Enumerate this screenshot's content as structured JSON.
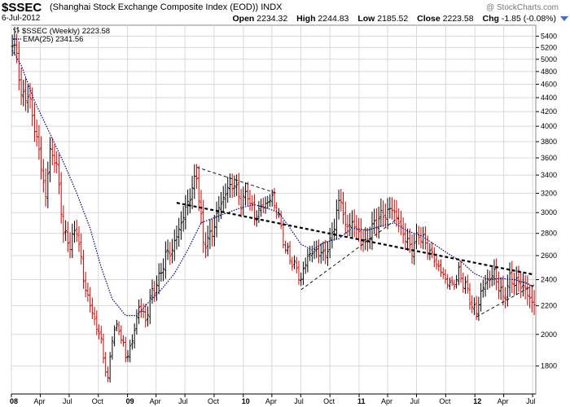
{
  "header": {
    "symbol": "$SSEC",
    "description": "(Shanghai Stock Exchange Composite Index (EOD)) INDX",
    "date": "6-Jul-2012",
    "watermark": "@ StockCharts.com",
    "open_label": "Open",
    "open": "2234.32",
    "high_label": "High",
    "high": "2244.83",
    "low_label": "Low",
    "low": "2185.52",
    "close_label": "Close",
    "close": "2223.58",
    "chg_label": "Chg",
    "chg": "-1.85 (-0.08%)"
  },
  "legend": {
    "main": "$SSEC (Weekly) 2223.58",
    "ema": "EMA(25) 2341.56"
  },
  "chart_data": {
    "type": "ohlc",
    "title": "$SSEC (Shanghai Stock Exchange Composite Index (EOD)) INDX",
    "y_scale": "log",
    "ylim": [
      1640,
      5600
    ],
    "y_ticks": [
      1800,
      2000,
      2200,
      2400,
      2600,
      2800,
      3000,
      3200,
      3400,
      3600,
      3800,
      4000,
      4200,
      4400,
      4600,
      4800,
      5000,
      5200,
      5400
    ],
    "y_axis_side": "right",
    "grid": true,
    "x_ticks": [
      {
        "label": "08",
        "year": true
      },
      {
        "label": "Apr"
      },
      {
        "label": "Jul"
      },
      {
        "label": "Oct"
      },
      {
        "label": "09",
        "year": true
      },
      {
        "label": "Apr"
      },
      {
        "label": "Jul"
      },
      {
        "label": "Oct"
      },
      {
        "label": "10",
        "year": true
      },
      {
        "label": "Apr"
      },
      {
        "label": "Jul"
      },
      {
        "label": "Oct"
      },
      {
        "label": "11",
        "year": true
      },
      {
        "label": "Apr"
      },
      {
        "label": "Jul"
      },
      {
        "label": "Oct"
      },
      {
        "label": "12",
        "year": true
      },
      {
        "label": "Apr"
      },
      {
        "label": "Jul"
      }
    ],
    "price_points": [
      [
        "2008-01-04",
        5250
      ],
      [
        "2008-01-18",
        5100
      ],
      [
        "2008-02-01",
        4400
      ],
      [
        "2008-02-22",
        4450
      ],
      [
        "2008-03-14",
        4000
      ],
      [
        "2008-04-04",
        3500
      ],
      [
        "2008-04-18",
        3150
      ],
      [
        "2008-05-02",
        3700
      ],
      [
        "2008-05-23",
        3500
      ],
      [
        "2008-06-13",
        2800
      ],
      [
        "2008-07-04",
        2700
      ],
      [
        "2008-07-25",
        2850
      ],
      [
        "2008-08-15",
        2400
      ],
      [
        "2008-09-05",
        2200
      ],
      [
        "2008-09-19",
        2100
      ],
      [
        "2008-10-10",
        1950
      ],
      [
        "2008-10-31",
        1700
      ],
      [
        "2008-11-14",
        2000
      ],
      [
        "2008-12-05",
        2050
      ],
      [
        "2008-12-26",
        1850
      ],
      [
        "2009-01-16",
        1950
      ],
      [
        "2009-02-06",
        2200
      ],
      [
        "2009-02-27",
        2100
      ],
      [
        "2009-03-20",
        2300
      ],
      [
        "2009-04-10",
        2400
      ],
      [
        "2009-05-01",
        2600
      ],
      [
        "2009-05-22",
        2650
      ],
      [
        "2009-06-19",
        2900
      ],
      [
        "2009-07-10",
        3100
      ],
      [
        "2009-08-07",
        3400
      ],
      [
        "2009-08-28",
        2700
      ],
      [
        "2009-09-25",
        2800
      ],
      [
        "2009-10-16",
        3050
      ],
      [
        "2009-11-13",
        3250
      ],
      [
        "2009-12-04",
        3300
      ],
      [
        "2009-12-25",
        3100
      ],
      [
        "2010-01-15",
        3200
      ],
      [
        "2010-02-05",
        2950
      ],
      [
        "2010-02-26",
        3050
      ],
      [
        "2010-04-02",
        3150
      ],
      [
        "2010-04-23",
        2950
      ],
      [
        "2010-05-14",
        2650
      ],
      [
        "2010-06-04",
        2550
      ],
      [
        "2010-07-02",
        2400
      ],
      [
        "2010-07-23",
        2600
      ],
      [
        "2010-08-20",
        2650
      ],
      [
        "2010-09-10",
        2600
      ],
      [
        "2010-10-01",
        2700
      ],
      [
        "2010-10-22",
        3000
      ],
      [
        "2010-11-05",
        3150
      ],
      [
        "2010-11-19",
        2850
      ],
      [
        "2010-12-10",
        2900
      ],
      [
        "2010-12-31",
        2800
      ],
      [
        "2011-01-21",
        2700
      ],
      [
        "2011-02-11",
        2850
      ],
      [
        "2011-03-04",
        2950
      ],
      [
        "2011-04-01",
        3000
      ],
      [
        "2011-04-15",
        3050
      ],
      [
        "2011-05-06",
        2900
      ],
      [
        "2011-05-27",
        2750
      ],
      [
        "2011-06-17",
        2650
      ],
      [
        "2011-07-08",
        2800
      ],
      [
        "2011-07-29",
        2700
      ],
      [
        "2011-08-19",
        2600
      ],
      [
        "2011-09-09",
        2500
      ],
      [
        "2011-09-30",
        2400
      ],
      [
        "2011-10-21",
        2350
      ],
      [
        "2011-11-11",
        2450
      ],
      [
        "2011-12-02",
        2350
      ],
      [
        "2011-12-23",
        2200
      ],
      [
        "2012-01-06",
        2150
      ],
      [
        "2012-01-20",
        2300
      ],
      [
        "2012-02-10",
        2400
      ],
      [
        "2012-03-02",
        2450
      ],
      [
        "2012-03-16",
        2350
      ],
      [
        "2012-03-30",
        2250
      ],
      [
        "2012-04-20",
        2400
      ],
      [
        "2012-05-11",
        2380
      ],
      [
        "2012-06-01",
        2350
      ],
      [
        "2012-06-22",
        2250
      ],
      [
        "2012-07-06",
        2220
      ]
    ],
    "ema_points": [
      [
        "2008-01-04",
        5150
      ],
      [
        "2008-02-01",
        4900
      ],
      [
        "2008-03-14",
        4350
      ],
      [
        "2008-05-02",
        3900
      ],
      [
        "2008-06-13",
        3550
      ],
      [
        "2008-07-25",
        3200
      ],
      [
        "2008-09-05",
        2850
      ],
      [
        "2008-10-10",
        2500
      ],
      [
        "2008-11-14",
        2250
      ],
      [
        "2008-12-26",
        2130
      ],
      [
        "2009-01-30",
        2130
      ],
      [
        "2009-03-06",
        2220
      ],
      [
        "2009-04-17",
        2320
      ],
      [
        "2009-05-29",
        2450
      ],
      [
        "2009-07-10",
        2650
      ],
      [
        "2009-08-21",
        2900
      ],
      [
        "2009-10-02",
        2950
      ],
      [
        "2009-11-13",
        3000
      ],
      [
        "2009-12-25",
        3050
      ],
      [
        "2010-02-05",
        3080
      ],
      [
        "2010-03-12",
        3050
      ],
      [
        "2010-04-23",
        3000
      ],
      [
        "2010-05-28",
        2850
      ],
      [
        "2010-07-02",
        2700
      ],
      [
        "2010-08-06",
        2650
      ],
      [
        "2010-09-17",
        2720
      ],
      [
        "2010-10-29",
        2750
      ],
      [
        "2010-12-10",
        2850
      ],
      [
        "2011-01-28",
        2830
      ],
      [
        "2011-03-11",
        2870
      ],
      [
        "2011-04-22",
        2900
      ],
      [
        "2011-06-03",
        2820
      ],
      [
        "2011-07-15",
        2780
      ],
      [
        "2011-08-26",
        2700
      ],
      [
        "2011-10-07",
        2620
      ],
      [
        "2011-11-18",
        2550
      ],
      [
        "2011-12-30",
        2450
      ],
      [
        "2012-02-10",
        2400
      ],
      [
        "2012-03-23",
        2410
      ],
      [
        "2012-05-04",
        2400
      ],
      [
        "2012-06-15",
        2370
      ],
      [
        "2012-07-06",
        2340
      ]
    ],
    "trendlines": [
      {
        "style": "dashed",
        "weight": "bold",
        "from": [
          "2009-06-05",
          3100
        ],
        "to": [
          "2012-07-06",
          2440
        ]
      },
      {
        "style": "dashed",
        "weight": "thin",
        "from": [
          "2009-08-07",
          3490
        ],
        "to": [
          "2010-04-16",
          3200
        ]
      },
      {
        "style": "dashed",
        "weight": "thin",
        "from": [
          "2010-07-02",
          2320
        ],
        "to": [
          "2011-05-06",
          2950
        ]
      },
      {
        "style": "dashed",
        "weight": "thin",
        "from": [
          "2012-01-06",
          2120
        ],
        "to": [
          "2012-07-06",
          2360
        ]
      }
    ],
    "colors": {
      "up": "#000000",
      "down": "#cc0000",
      "ema": "#000080",
      "grid": "#d8d8d8",
      "trend": "#000000",
      "ema_dot": "#000080"
    }
  }
}
